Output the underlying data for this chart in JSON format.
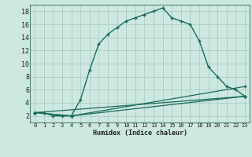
{
  "title": "",
  "xlabel": "Humidex (Indice chaleur)",
  "bg_color": "#cce8e0",
  "grid_color": "#b0d0c8",
  "line_color": "#1a6b5a",
  "xlim": [
    -0.5,
    23.5
  ],
  "ylim": [
    1,
    19
  ],
  "xticks": [
    0,
    1,
    2,
    3,
    4,
    5,
    6,
    7,
    8,
    9,
    10,
    11,
    12,
    13,
    14,
    15,
    16,
    17,
    18,
    19,
    20,
    21,
    22,
    23
  ],
  "yticks": [
    2,
    4,
    6,
    8,
    10,
    12,
    14,
    16,
    18
  ],
  "series1_x": [
    0,
    1,
    2,
    3,
    4,
    5,
    6,
    7,
    8,
    9,
    10,
    11,
    12,
    13,
    14,
    15,
    16,
    17,
    18,
    19,
    20,
    21,
    22,
    23
  ],
  "series1_y": [
    2.5,
    2.5,
    2.0,
    2.0,
    2.0,
    4.5,
    9.0,
    13.0,
    14.5,
    15.5,
    16.5,
    17.0,
    17.5,
    18.0,
    18.5,
    17.0,
    16.5,
    16.0,
    13.5,
    9.5,
    8.0,
    6.5,
    6.0,
    5.0
  ],
  "series2_x": [
    0,
    23
  ],
  "series2_y": [
    2.5,
    5.0
  ],
  "series3_x": [
    0,
    4,
    23
  ],
  "series3_y": [
    2.5,
    2.0,
    6.5
  ],
  "series4_x": [
    0,
    4,
    23
  ],
  "series4_y": [
    2.5,
    2.0,
    5.0
  ]
}
